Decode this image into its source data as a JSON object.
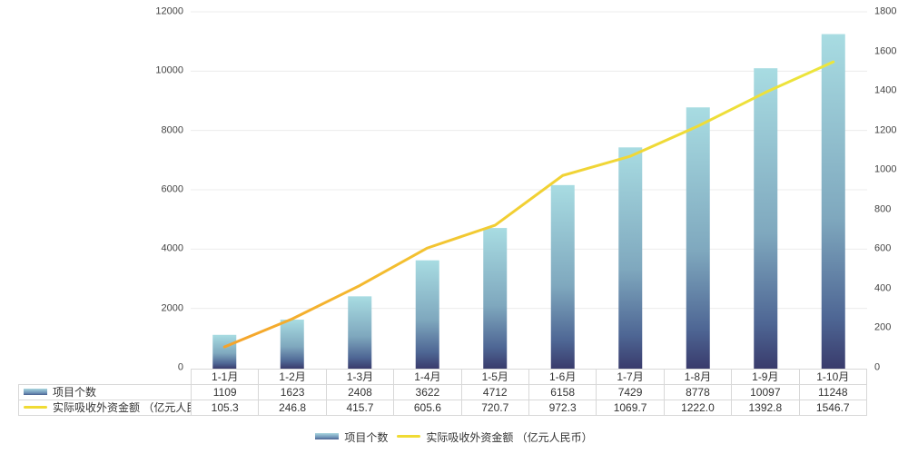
{
  "chart_data": {
    "type": "combo",
    "categories": [
      "1-1月",
      "1-2月",
      "1-3月",
      "1-4月",
      "1-5月",
      "1-6月",
      "1-7月",
      "1-8月",
      "1-9月",
      "1-10月"
    ],
    "series": [
      {
        "name": "项目个数",
        "type": "bar",
        "axis": "left",
        "values": [
          1109,
          1623,
          2408,
          3622,
          4712,
          6158,
          7429,
          8778,
          10097,
          11248
        ],
        "display_values": [
          "1109",
          "1623",
          "2408",
          "3622",
          "4712",
          "6158",
          "7429",
          "8778",
          "10097",
          "11248"
        ]
      },
      {
        "name": "实际吸收外资金额 （亿元人民币）",
        "type": "line",
        "axis": "right",
        "values": [
          105.3,
          246.8,
          415.7,
          605.6,
          720.7,
          972.3,
          1069.7,
          1222.0,
          1392.8,
          1546.7
        ],
        "display_values": [
          "105.3",
          "246.8",
          "415.7",
          "605.6",
          "720.7",
          "972.3",
          "1069.7",
          "1222.0",
          "1392.8",
          "1546.7"
        ]
      }
    ],
    "left_axis": {
      "min": 0,
      "max": 12000,
      "step": 2000,
      "ticks": [
        "0",
        "2000",
        "4000",
        "6000",
        "8000",
        "10000",
        "12000"
      ]
    },
    "right_axis": {
      "min": 0,
      "max": 1800,
      "step": 200,
      "ticks": [
        "0",
        "200",
        "400",
        "600",
        "800",
        "1000",
        "1200",
        "1400",
        "1600",
        "1800"
      ]
    },
    "grid": true,
    "legend_position": "bottom",
    "data_table_shown": true,
    "colors": {
      "bar_gradient": [
        {
          "offset": "0%",
          "color": "#a8dce2"
        },
        {
          "offset": "55%",
          "color": "#7fa8be"
        },
        {
          "offset": "85%",
          "color": "#4e6694"
        },
        {
          "offset": "100%",
          "color": "#393b6c"
        }
      ],
      "line_gradient": [
        {
          "offset": "0%",
          "color": "#f5a32b"
        },
        {
          "offset": "45%",
          "color": "#f2ce33"
        },
        {
          "offset": "100%",
          "color": "#ece63c"
        }
      ],
      "gridline": "#ececec",
      "table_border": "#d8d8d8",
      "axis_text": "#444444",
      "table_text": "#333333",
      "line_swatch": "#f0db34"
    }
  },
  "legend": {
    "bar_label": "项目个数",
    "line_label": "实际吸收外资金额 （亿元人民币）"
  }
}
